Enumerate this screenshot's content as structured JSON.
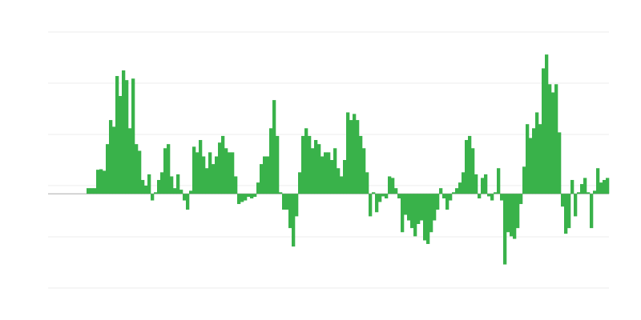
{
  "chart_data": {
    "type": "bar",
    "title": "",
    "xlabel": "",
    "ylabel": "",
    "ylim": [
      -1.84,
      3.16
    ],
    "gridlines": [
      3.16,
      2.16,
      1.16,
      0.16,
      -0.84,
      -1.84
    ],
    "grid": true,
    "legend": "none",
    "colors": {
      "bar": "#39b24a",
      "grid": "#ececec",
      "baseline": "#aaaaaa"
    },
    "values": [
      null,
      null,
      null,
      null,
      null,
      null,
      null,
      null,
      null,
      null,
      null,
      null,
      0.11,
      0.11,
      0.11,
      0.47,
      0.48,
      0.45,
      0.97,
      1.44,
      1.31,
      2.3,
      1.91,
      2.41,
      2.22,
      1.28,
      2.25,
      0.97,
      0.84,
      0.27,
      0.16,
      0.38,
      -0.13,
      0.03,
      0.27,
      0.42,
      0.89,
      0.97,
      0.34,
      0.11,
      0.38,
      0.08,
      -0.13,
      -0.31,
      0.06,
      0.92,
      0.81,
      1.05,
      0.73,
      0.5,
      0.81,
      0.58,
      0.73,
      1.0,
      1.13,
      0.89,
      0.81,
      0.81,
      0.34,
      -0.2,
      -0.16,
      -0.13,
      -0.06,
      -0.09,
      -0.06,
      0.22,
      0.58,
      0.73,
      0.73,
      1.28,
      1.83,
      1.13,
      0.03,
      -0.31,
      -0.31,
      -0.67,
      -1.03,
      -0.44,
      0.42,
      1.13,
      1.28,
      1.13,
      0.89,
      1.05,
      0.97,
      0.73,
      0.81,
      0.81,
      0.66,
      0.89,
      0.5,
      0.34,
      0.66,
      1.59,
      1.44,
      1.56,
      1.44,
      1.13,
      0.89,
      0.42,
      -0.44,
      0.03,
      -0.36,
      -0.16,
      -0.05,
      -0.09,
      0.34,
      0.31,
      0.11,
      -0.09,
      -0.75,
      -0.41,
      -0.52,
      -0.67,
      -0.83,
      -0.59,
      -0.52,
      -0.91,
      -0.98,
      -0.75,
      -0.52,
      -0.31,
      0.11,
      -0.09,
      -0.31,
      -0.13,
      0.03,
      0.11,
      0.22,
      0.42,
      1.05,
      1.13,
      0.89,
      0.38,
      -0.09,
      0.31,
      0.38,
      -0.05,
      -0.13,
      0.03,
      0.5,
      -0.13,
      -1.38,
      -0.75,
      -0.83,
      -0.88,
      -0.67,
      -0.2,
      0.53,
      1.36,
      1.09,
      1.28,
      1.59,
      1.36,
      2.45,
      2.72,
      2.14,
      1.98,
      2.14,
      1.2,
      -0.25,
      -0.78,
      -0.67,
      0.27,
      -0.44,
      0.03,
      0.19,
      0.31,
      0.03,
      -0.67,
      0.06,
      0.5,
      0.22,
      0.27,
      0.31
    ]
  }
}
